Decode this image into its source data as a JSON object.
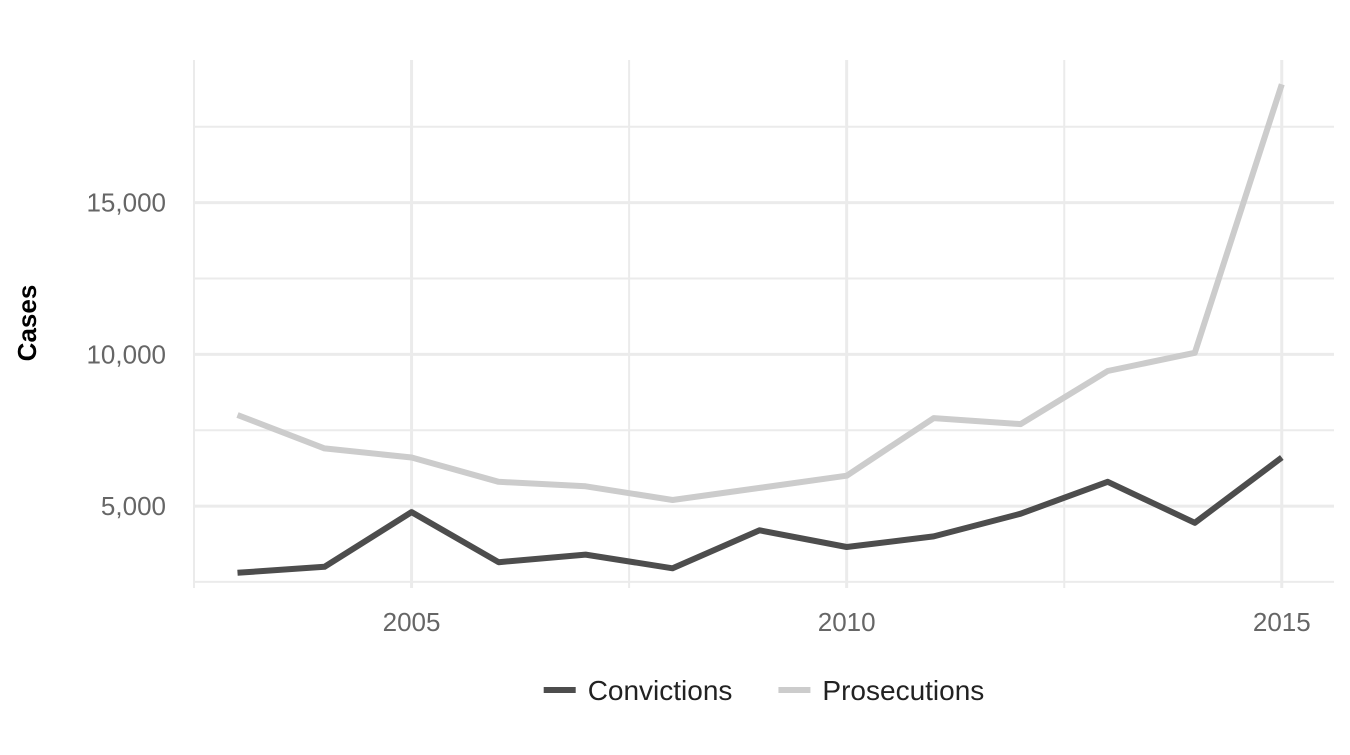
{
  "chart_data": {
    "type": "line",
    "title": "",
    "xlabel": "",
    "ylabel": "Cases",
    "x": [
      2003,
      2004,
      2005,
      2006,
      2007,
      2008,
      2009,
      2010,
      2011,
      2012,
      2013,
      2014,
      2015
    ],
    "series": [
      {
        "name": "Convictions",
        "color": "#4d4d4d",
        "values": [
          2800,
          3000,
          4800,
          3150,
          3400,
          2950,
          4200,
          3650,
          4000,
          4750,
          5800,
          4450,
          6600
        ]
      },
      {
        "name": "Prosecutions",
        "color": "#cccccc",
        "values": [
          8000,
          6900,
          6600,
          5800,
          5650,
          5200,
          5600,
          6000,
          7900,
          7700,
          9450,
          10050,
          18900
        ]
      }
    ],
    "xlim": [
      2002.5,
      2015.6
    ],
    "ylim": [
      2300,
      19700
    ],
    "x_ticks": [
      2005,
      2010,
      2015
    ],
    "x_tick_labels": [
      "2005",
      "2010",
      "2015"
    ],
    "y_ticks": [
      5000,
      10000,
      15000
    ],
    "y_tick_labels": [
      "5,000",
      "10,000",
      "15,000"
    ],
    "grid": true,
    "legend_position": "bottom"
  }
}
